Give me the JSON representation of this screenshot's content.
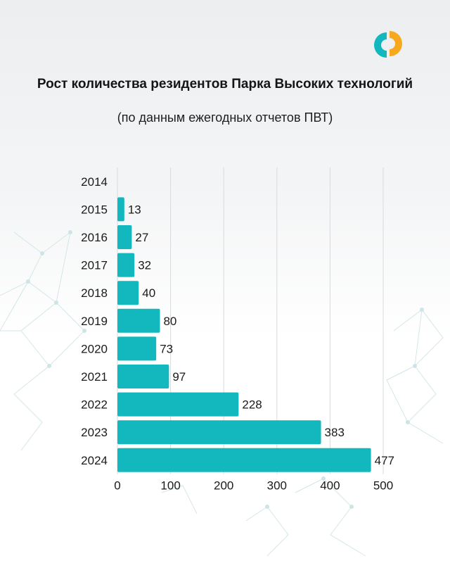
{
  "title": "Рост количества резидентов Парка Высоких технологий",
  "subtitle": "(по данным ежегодных отчетов ПВТ)",
  "colors": {
    "bar": "#13b7be",
    "grid": "#d7dadc",
    "text": "#1a1a1a",
    "logo_teal": "#13b7be",
    "logo_orange": "#f6a81f"
  },
  "chart_data": {
    "type": "bar",
    "orientation": "horizontal",
    "title": "Рост количества резидентов Парка Высоких технологий",
    "subtitle": "(по данным ежегодных отчетов ПВТ)",
    "categories": [
      "2014",
      "2015",
      "2016",
      "2017",
      "2018",
      "2019",
      "2020",
      "2021",
      "2022",
      "2023",
      "2024"
    ],
    "values": [
      0,
      13,
      27,
      32,
      40,
      80,
      73,
      97,
      228,
      383,
      477
    ],
    "data_labels": [
      "",
      "13",
      "27",
      "32",
      "40",
      "80",
      "73",
      "97",
      "228",
      "383",
      "477"
    ],
    "xticks": [
      "0",
      "100",
      "200",
      "300",
      "400",
      "500"
    ],
    "xlim": [
      0,
      500
    ],
    "xlabel": "",
    "ylabel": "",
    "grid": true,
    "legend": "none"
  }
}
